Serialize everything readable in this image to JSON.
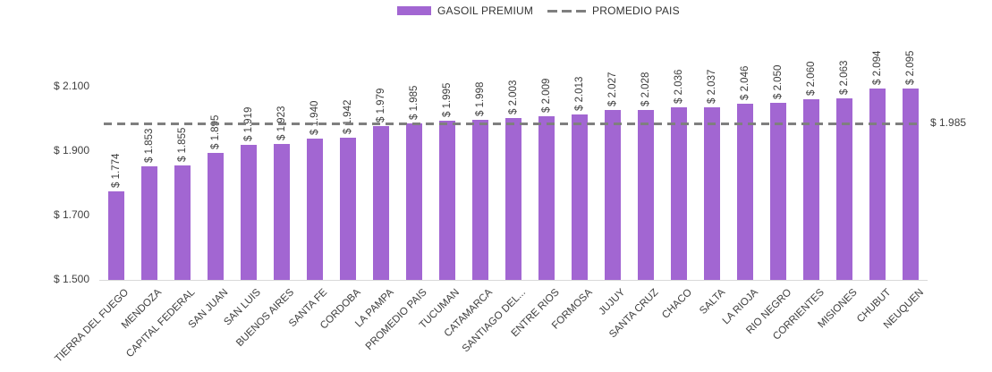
{
  "chart_data": {
    "type": "bar",
    "title": "",
    "categories": [
      "TIERRA DEL FUEGO",
      "MENDOZA",
      "CAPITAL FEDERAL",
      "SAN JUAN",
      "SAN LUIS",
      "BUENOS AIRES",
      "SANTA FE",
      "CORDOBA",
      "LA PAMPA",
      "PROMEDIO PAIS",
      "TUCUMAN",
      "CATAMARCA",
      "SANTIAGO DEL...",
      "ENTRE RIOS",
      "FORMOSA",
      "JUJUY",
      "SANTA CRUZ",
      "CHACO",
      "SALTA",
      "LA RIOJA",
      "RIO NEGRO",
      "CORRIENTES",
      "MISIONES",
      "CHUBUT",
      "NEUQUEN"
    ],
    "values": [
      1774,
      1853,
      1855,
      1895,
      1919,
      1923,
      1940,
      1942,
      1979,
      1985,
      1995,
      1998,
      2003,
      2009,
      2013,
      2027,
      2028,
      2036,
      2037,
      2046,
      2050,
      2060,
      2063,
      2094,
      2095
    ],
    "value_labels": [
      "$ 1.774",
      "$ 1.853",
      "$ 1.855",
      "$ 1.895",
      "$ 1.919",
      "$ 1.923",
      "$ 1.940",
      "$ 1.942",
      "$ 1.979",
      "$ 1.985",
      "$ 1.995",
      "$ 1.998",
      "$ 2.003",
      "$ 2.009",
      "$ 2.013",
      "$ 2.027",
      "$ 2.028",
      "$ 2.036",
      "$ 2.037",
      "$ 2.046",
      "$ 2.050",
      "$ 2.060",
      "$ 2.063",
      "$ 2.094",
      "$ 2.095"
    ],
    "series_name": "GASOIL PREMIUM",
    "y_ticks": [
      {
        "value": 1500,
        "label": "$ 1.500"
      },
      {
        "value": 1700,
        "label": "$ 1.700"
      },
      {
        "value": 1900,
        "label": "$ 1.900"
      },
      {
        "value": 2100,
        "label": "$ 2.100"
      }
    ],
    "ylim": [
      1500,
      2100
    ],
    "grid": false,
    "legend_position": "top",
    "legend": [
      {
        "label": "GASOIL PREMIUM",
        "swatch": "bar"
      },
      {
        "label": "PROMEDIO PAIS",
        "swatch": "dashed-line"
      }
    ],
    "average_line": {
      "value": 1985,
      "label": "$ 1.985",
      "name": "PROMEDIO PAIS"
    },
    "colors": {
      "bar": "#a266d2",
      "dash_line": "#7f7f7f",
      "text": "#3d3d3d",
      "axis_line": "#d9d9d9"
    }
  }
}
